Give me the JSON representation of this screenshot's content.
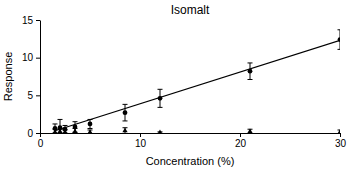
{
  "chart_data": {
    "type": "scatter",
    "title": "Isomalt",
    "x_label": "Concentration (%)",
    "y_label": "Response",
    "x": [
      1.5,
      2,
      2.5,
      3.5,
      5,
      8.5,
      12,
      21,
      30
    ],
    "series": [
      {
        "type": "scatter",
        "marker": "circle",
        "color": "#000000",
        "values": [
          0.6,
          0.7,
          0.5,
          0.8,
          1.2,
          2.7,
          4.6,
          8.2,
          12.4
        ],
        "errors": [
          0.6,
          1.1,
          0.5,
          0.7,
          0.6,
          1.1,
          1.2,
          1.1,
          1.3
        ]
      },
      {
        "type": "scatter",
        "marker": "triangle",
        "color": "#000000",
        "values": [
          0.1,
          0.2,
          0.1,
          0.2,
          0.1,
          0.3,
          0.05,
          0.2,
          0.1
        ],
        "errors": [
          0.4,
          0.3,
          0.3,
          0.4,
          0.3,
          0.4,
          0.1,
          0.3,
          0.3
        ]
      },
      {
        "type": "line",
        "line_style": "solid",
        "color": "#000000",
        "x": [
          1.5,
          30
        ],
        "values": [
          0.3,
          12.3
        ]
      }
    ],
    "xlim": [
      0,
      30
    ],
    "xticks": [
      0,
      10,
      20,
      30
    ],
    "ylim": [
      0,
      15
    ],
    "yticks": [
      0,
      5,
      10,
      15
    ],
    "grid": false
  }
}
